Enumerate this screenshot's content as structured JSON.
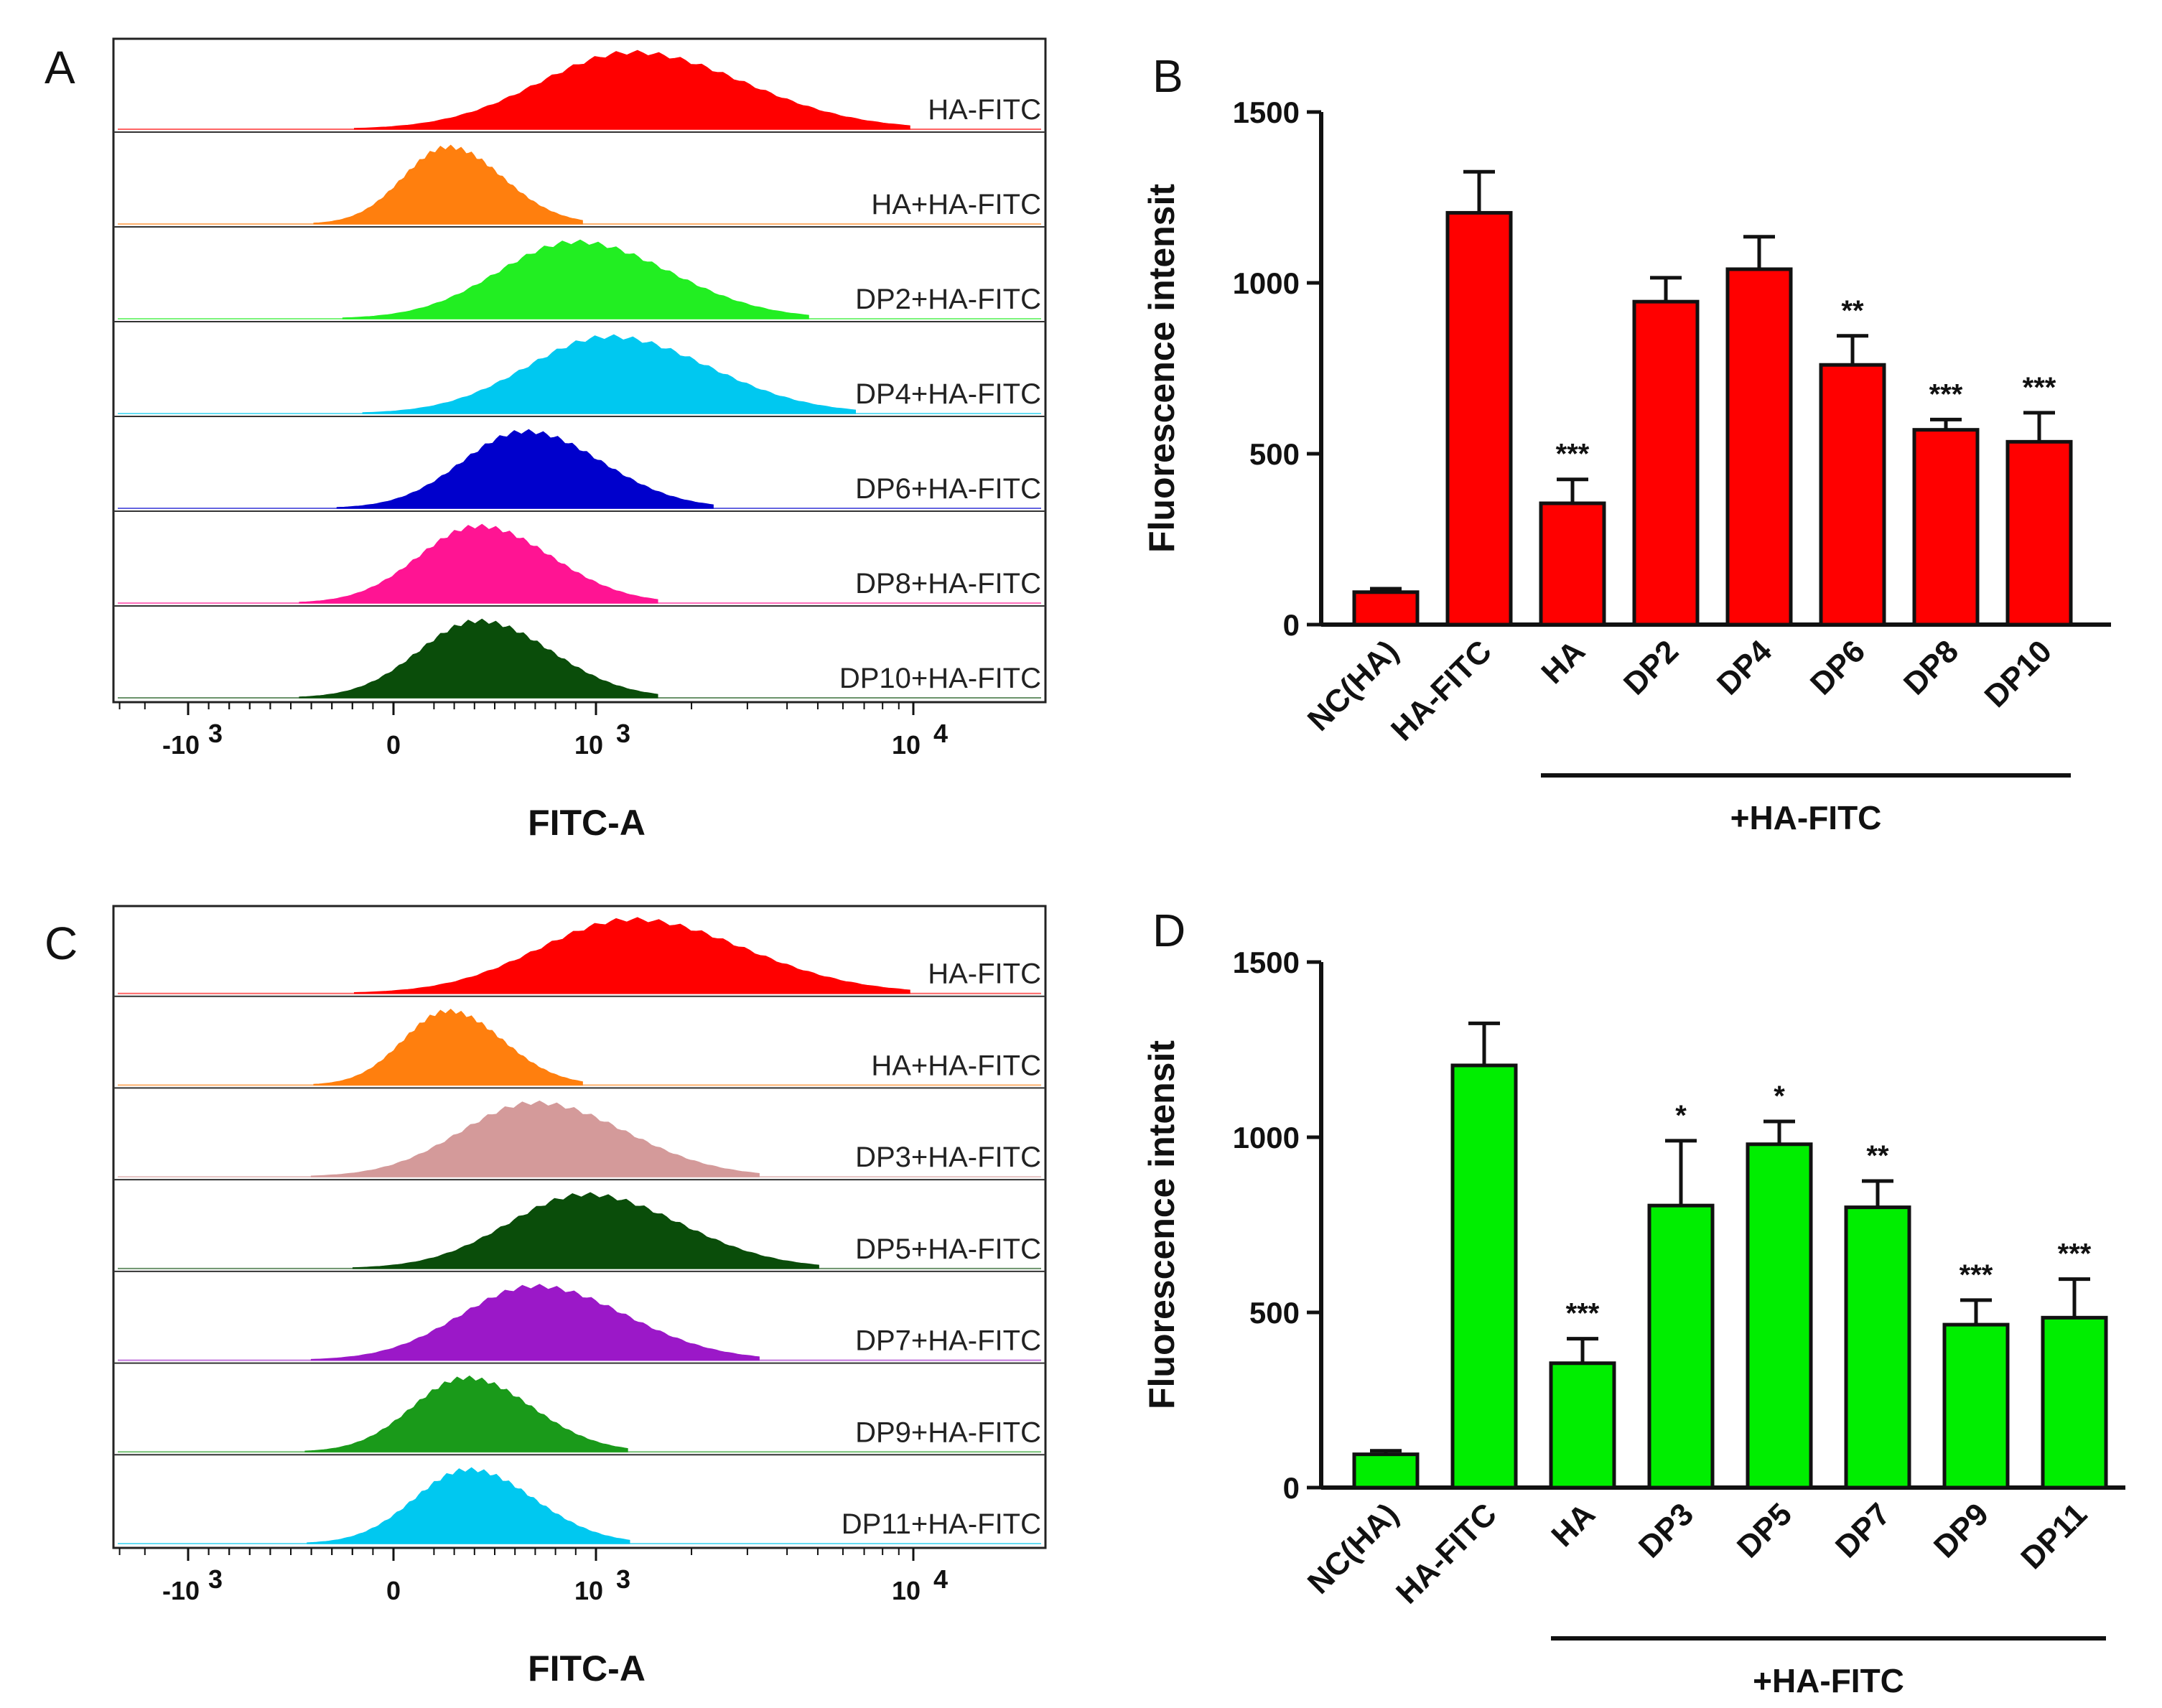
{
  "chart_data": [
    {
      "id": "A",
      "type": "area",
      "panel_label": "A",
      "xlabel": "FITC-A",
      "ticks": [
        "-10",
        "0",
        "10",
        "10"
      ],
      "tick_exponents": [
        "3",
        "",
        "3",
        "4"
      ],
      "tick_positions_log": [
        -1000,
        0,
        1000,
        10000
      ],
      "series": [
        {
          "name": "HA-FITC",
          "color": "#ff0000",
          "peak": 1300,
          "width": 0.62
        },
        {
          "name": "HA+HA-FITC",
          "color": "#ff7f0e",
          "peak": 270,
          "width": 0.3
        },
        {
          "name": "DP2+HA-FITC",
          "color": "#22ee22",
          "peak": 900,
          "width": 0.52
        },
        {
          "name": "DP4+HA-FITC",
          "color": "#00c8f0",
          "peak": 1100,
          "width": 0.55
        },
        {
          "name": "DP6+HA-FITC",
          "color": "#0000cc",
          "peak": 650,
          "width": 0.42
        },
        {
          "name": "DP8+HA-FITC",
          "color": "#ff1493",
          "peak": 420,
          "width": 0.4
        },
        {
          "name": "DP10+HA-FITC",
          "color": "#0a4d0a",
          "peak": 420,
          "width": 0.4
        }
      ]
    },
    {
      "id": "B",
      "type": "bar",
      "panel_label": "B",
      "ylabel": "Fluorescence intensit",
      "ylim": [
        0,
        1500
      ],
      "yticks": [
        0,
        500,
        1000,
        1500
      ],
      "categories": [
        "NC(HA)",
        "HA-FITC",
        "HA",
        "DP2",
        "DP4",
        "DP6",
        "DP8",
        "DP10"
      ],
      "values": [
        95,
        1205,
        355,
        945,
        1040,
        760,
        570,
        535
      ],
      "errors": [
        10,
        120,
        70,
        70,
        95,
        85,
        30,
        85
      ],
      "significance": [
        "",
        "",
        "***",
        "",
        "",
        "**",
        "***",
        "***"
      ],
      "bar_color": "#ff0000",
      "group_label": "+HA-FITC"
    },
    {
      "id": "C",
      "type": "area",
      "panel_label": "C",
      "xlabel": "FITC-A",
      "ticks": [
        "-10",
        "0",
        "10",
        "10"
      ],
      "tick_exponents": [
        "3",
        "",
        "3",
        "4"
      ],
      "tick_positions_log": [
        -1000,
        0,
        1000,
        10000
      ],
      "series": [
        {
          "name": "HA-FITC",
          "color": "#ff0000",
          "peak": 1300,
          "width": 0.62
        },
        {
          "name": "HA+HA-FITC",
          "color": "#ff7f0e",
          "peak": 270,
          "width": 0.3
        },
        {
          "name": "DP3+HA-FITC",
          "color": "#d49a9a",
          "peak": 700,
          "width": 0.5
        },
        {
          "name": "DP5+HA-FITC",
          "color": "#0a4d0a",
          "peak": 950,
          "width": 0.52
        },
        {
          "name": "DP7+HA-FITC",
          "color": "#9b18c8",
          "peak": 700,
          "width": 0.5
        },
        {
          "name": "DP9+HA-FITC",
          "color": "#1a9a1a",
          "peak": 360,
          "width": 0.36
        },
        {
          "name": "DP11+HA-FITC",
          "color": "#00c8f0",
          "peak": 370,
          "width": 0.36
        }
      ]
    },
    {
      "id": "D",
      "type": "bar",
      "panel_label": "D",
      "ylabel": "Fluorescence intensit",
      "ylim": [
        0,
        1500
      ],
      "yticks": [
        0,
        500,
        1000,
        1500
      ],
      "categories": [
        "NC(HA)",
        "HA-FITC",
        "HA",
        "DP3",
        "DP5",
        "DP7",
        "DP9",
        "DP11"
      ],
      "values": [
        95,
        1205,
        355,
        805,
        980,
        800,
        465,
        485
      ],
      "errors": [
        10,
        120,
        70,
        185,
        65,
        75,
        70,
        110
      ],
      "significance": [
        "",
        "",
        "***",
        "*",
        "*",
        "**",
        "***",
        "***"
      ],
      "bar_color": "#00ee00",
      "group_label": "+HA-FITC"
    }
  ]
}
